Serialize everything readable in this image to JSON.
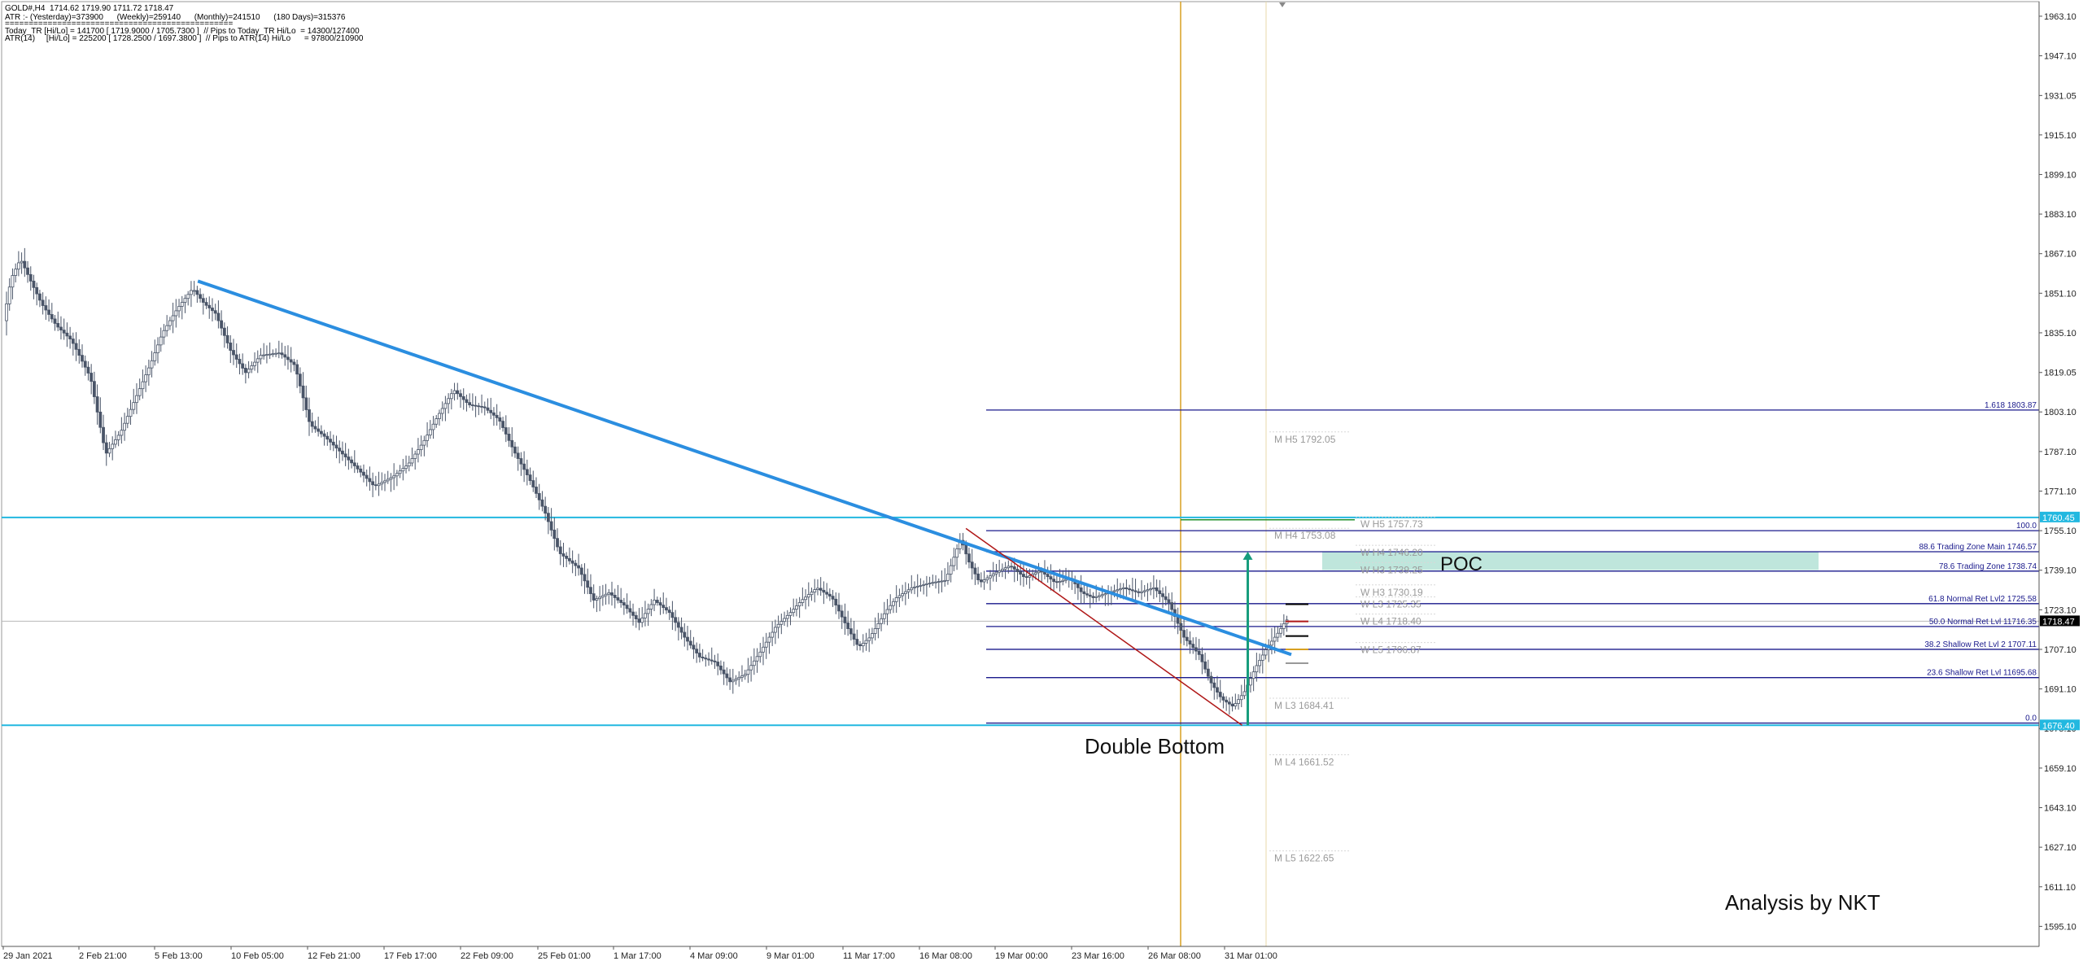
{
  "header": {
    "line1": "GOLD#,H4  1714.62 1719.90 1711.72 1718.47",
    "line2": "ATR :- (Yesterday)=373900      (Weekly)=259140      (Monthly)=241510      (180 Days)=315376",
    "line3": "================================================",
    "line4": "Today_TR [Hi/Lo] = 141700 [ 1719.9000 / 1705.7300 ]  // Pips to Today_TR Hi/Lo  = 14300/127400",
    "line5": "ATR(14)     [Hi/Lo] = 225200 [ 1728.2500 / 1697.3800 ]  // Pips to ATR(14) Hi/Lo      = 97800/210900"
  },
  "annotations": {
    "poc": "POC",
    "double_bottom": "Double Bottom",
    "author": "Analysis by NKT"
  },
  "colors": {
    "background": "#ffffff",
    "candle": "#4a5568",
    "trendline": "#2b8ee0",
    "horizontal_cyan": "#22b8e0",
    "fib_line": "#1a1a8c",
    "red_trend": "#b01818",
    "vertical_line": "#d8a020",
    "arrow": "#169c7c",
    "poc_zone": "#bfe6dc",
    "current_price_bg": "#000000"
  },
  "chart_data": {
    "type": "candlestick",
    "symbol": "GOLD#",
    "timeframe": "H4",
    "ylim": [
      1587,
      1969
    ],
    "y_ticks": [
      "1963.10",
      "1947.10",
      "1931.05",
      "1915.10",
      "1899.10",
      "1883.10",
      "1867.10",
      "1851.10",
      "1835.10",
      "1819.05",
      "1803.10",
      "1787.10",
      "1771.10",
      "1755.10",
      "1739.10",
      "1723.10",
      "1707.10",
      "1691.10",
      "1675.10",
      "1659.10",
      "1643.10",
      "1627.10",
      "1611.10",
      "1595.10"
    ],
    "x_ticks": [
      "29 Jan 2021",
      "2 Feb 21:00",
      "5 Feb 13:00",
      "10 Feb 05:00",
      "12 Feb 21:00",
      "17 Feb 17:00",
      "22 Feb 09:00",
      "25 Feb 01:00",
      "1 Mar 17:00",
      "4 Mar 09:00",
      "9 Mar 01:00",
      "11 Mar 17:00",
      "16 Mar 08:00",
      "19 Mar 00:00",
      "23 Mar 16:00",
      "26 Mar 08:00",
      "31 Mar 01:00"
    ],
    "price_path": [
      [
        0,
        1840
      ],
      [
        0.2,
        1857
      ],
      [
        0.45,
        1865
      ],
      [
        0.75,
        1855
      ],
      [
        1.0,
        1847
      ],
      [
        1.4,
        1838
      ],
      [
        1.8,
        1832
      ],
      [
        2.3,
        1817
      ],
      [
        2.7,
        1786
      ],
      [
        3.1,
        1795
      ],
      [
        3.5,
        1809
      ],
      [
        3.9,
        1823
      ],
      [
        4.2,
        1835
      ],
      [
        4.6,
        1845
      ],
      [
        5.0,
        1853
      ],
      [
        5.3,
        1847
      ],
      [
        5.6,
        1843
      ],
      [
        6.0,
        1828
      ],
      [
        6.4,
        1819
      ],
      [
        6.8,
        1826
      ],
      [
        7.3,
        1827
      ],
      [
        7.7,
        1822
      ],
      [
        8.1,
        1798
      ],
      [
        8.5,
        1793
      ],
      [
        8.9,
        1787
      ],
      [
        9.3,
        1781
      ],
      [
        9.8,
        1773
      ],
      [
        10.3,
        1777
      ],
      [
        10.7,
        1782
      ],
      [
        11.1,
        1791
      ],
      [
        11.5,
        1802
      ],
      [
        11.9,
        1812
      ],
      [
        12.3,
        1806
      ],
      [
        12.7,
        1805
      ],
      [
        13.1,
        1800
      ],
      [
        13.5,
        1787
      ],
      [
        13.9,
        1776
      ],
      [
        14.3,
        1763
      ],
      [
        14.7,
        1746
      ],
      [
        15.2,
        1740
      ],
      [
        15.6,
        1727
      ],
      [
        16.0,
        1730
      ],
      [
        16.4,
        1725
      ],
      [
        16.8,
        1718
      ],
      [
        17.2,
        1727
      ],
      [
        17.6,
        1722
      ],
      [
        18.0,
        1712
      ],
      [
        18.4,
        1704
      ],
      [
        18.8,
        1702
      ],
      [
        19.2,
        1694
      ],
      [
        19.6,
        1697
      ],
      [
        20.0,
        1706
      ],
      [
        20.4,
        1716
      ],
      [
        20.8,
        1722
      ],
      [
        21.1,
        1727
      ],
      [
        21.5,
        1732
      ],
      [
        21.9,
        1728
      ],
      [
        22.3,
        1716
      ],
      [
        22.6,
        1708
      ],
      [
        22.9,
        1712
      ],
      [
        23.3,
        1722
      ],
      [
        23.6,
        1728
      ],
      [
        24.0,
        1732
      ],
      [
        24.5,
        1734
      ],
      [
        24.9,
        1735
      ],
      [
        25.3,
        1752
      ],
      [
        25.5,
        1743
      ],
      [
        25.8,
        1734
      ],
      [
        26.2,
        1738
      ],
      [
        26.6,
        1741
      ],
      [
        27.0,
        1736
      ],
      [
        27.4,
        1739
      ],
      [
        27.8,
        1734
      ],
      [
        28.2,
        1736
      ],
      [
        28.5,
        1730
      ],
      [
        28.8,
        1728
      ],
      [
        29.2,
        1730
      ],
      [
        29.6,
        1732
      ],
      [
        30.0,
        1730
      ],
      [
        30.4,
        1732
      ],
      [
        30.8,
        1726
      ],
      [
        31.2,
        1712
      ],
      [
        31.6,
        1705
      ],
      [
        31.9,
        1694
      ],
      [
        32.2,
        1687
      ],
      [
        32.5,
        1684
      ],
      [
        32.8,
        1690
      ],
      [
        33.1,
        1700
      ],
      [
        33.4,
        1708
      ],
      [
        33.7,
        1714
      ],
      [
        33.9,
        1719
      ]
    ],
    "series": [
      {
        "name": "1.618",
        "label": "1.618 1803.87",
        "value": 1803.87
      },
      {
        "name": "100.0",
        "label": "100.0",
        "value": 1755.1
      },
      {
        "name": "88.6 Trading Zone Main",
        "label": "88.6 Trading Zone Main 1746.57",
        "value": 1746.57
      },
      {
        "name": "78.6 Trading Zone",
        "label": "78.6 Trading Zone 1738.74",
        "value": 1738.74
      },
      {
        "name": "61.8 Normal Ret Lvl2",
        "label": "61.8 Normal Ret Lvl2 1725.58",
        "value": 1725.58
      },
      {
        "name": "50.0 Normal Ret Lvl 1",
        "label": "50.0 Normal Ret Lvl 11716.35",
        "value": 1716.35
      },
      {
        "name": "38.2 Shallow Ret Lvl 2",
        "label": "38.2 Shallow Ret Lvl 2 1707.11",
        "value": 1707.11
      },
      {
        "name": "23.6 Shallow Ret Lvl 1",
        "label": "23.6 Shallow Ret Lvl 11695.68",
        "value": 1695.68
      },
      {
        "name": "0.0",
        "label": "0.0",
        "value": 1677.3
      }
    ],
    "pivot_levels": [
      {
        "label": "M  H5 1792.05",
        "value": 1792.05
      },
      {
        "label": "M  H4 1753.08",
        "value": 1753.08
      },
      {
        "label": "W  H5 1757.73",
        "value": 1757.73
      },
      {
        "label": "W  H4 1746.20",
        "value": 1746.2
      },
      {
        "label": "W  H3 1739.25",
        "value": 1739.25
      },
      {
        "label": "W  H3 1730.19",
        "value": 1730.19
      },
      {
        "label": "W  L3 1725.35",
        "value": 1725.35
      },
      {
        "label": "W  L4 1718.40",
        "value": 1718.4
      },
      {
        "label": "W  L5 1706.87",
        "value": 1706.87
      },
      {
        "label": "M  L3 1684.41",
        "value": 1684.41
      },
      {
        "label": "M  L4 1661.52",
        "value": 1661.52
      },
      {
        "label": "M  L5 1622.65",
        "value": 1622.65
      }
    ],
    "horizontal_levels": [
      {
        "label": "1760.45",
        "value": 1760.45
      },
      {
        "label": "1676.40",
        "value": 1676.4
      }
    ],
    "current_price": "1718.47",
    "poc_zone": [
      1739.2,
      1746.6
    ],
    "trendline": {
      "from": [
        5.1,
        1856
      ],
      "to": [
        34.0,
        1705
      ]
    },
    "red_trendline": {
      "from": [
        25.4,
        1756
      ],
      "to": [
        32.7,
        1676.4
      ]
    },
    "target_arrow": {
      "x": 32.85,
      "from": 1676.4,
      "to": 1746.6
    },
    "grid": false
  }
}
